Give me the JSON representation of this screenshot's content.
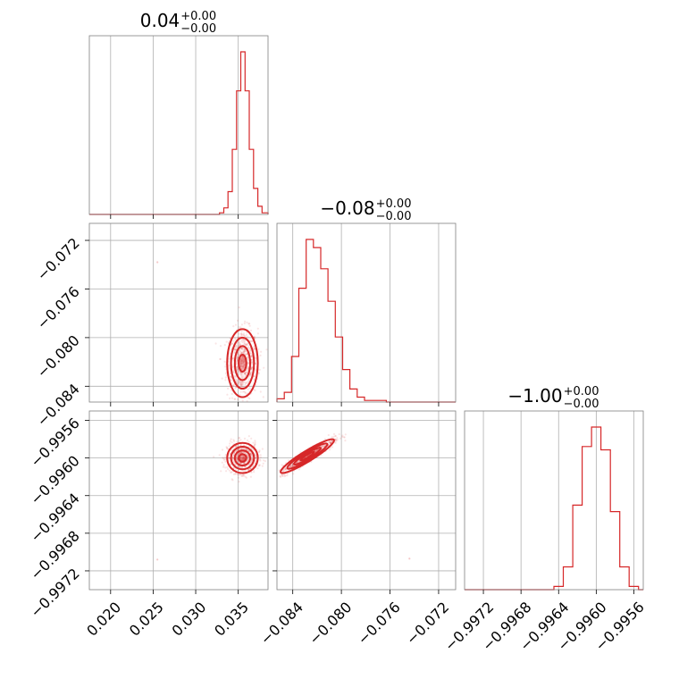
{
  "chart_data": {
    "type": "corner",
    "color": "#d62728",
    "grid": true,
    "parameters": [
      {
        "title": "0.04",
        "title_upper": "+0.00",
        "title_lower": "−0.00",
        "range": [
          0.0175,
          0.0385
        ],
        "ticks": [
          0.02,
          0.025,
          0.03,
          0.035
        ],
        "tick_labels": [
          "0.020",
          "0.025",
          "0.030",
          "0.035"
        ],
        "histogram": {
          "bin_edges": [
            0.0328,
            0.0333,
            0.0338,
            0.0343,
            0.0348,
            0.0353,
            0.0358,
            0.0363,
            0.0368,
            0.0373,
            0.0378,
            0.0385
          ],
          "counts": [
            1,
            4,
            14,
            40,
            76,
            100,
            76,
            40,
            16,
            5,
            1
          ]
        }
      },
      {
        "title": "−0.08",
        "title_upper": "+0.00",
        "title_lower": "−0.00",
        "range": [
          -0.0853,
          -0.0706
        ],
        "ticks": [
          -0.072,
          -0.076,
          -0.08,
          -0.084
        ],
        "tick_labels": [
          "−0.072",
          "−0.076",
          "−0.080",
          "−0.084"
        ],
        "histogram": {
          "bin_edges": [
            -0.0853,
            -0.0847,
            -0.0841,
            -0.0835,
            -0.0829,
            -0.0823,
            -0.0817,
            -0.0811,
            -0.0805,
            -0.0799,
            -0.0793,
            -0.0787,
            -0.0781,
            -0.0775,
            -0.0763,
            -0.0706
          ],
          "counts": [
            2,
            6,
            28,
            70,
            100,
            95,
            82,
            62,
            40,
            20,
            8,
            3,
            1,
            1,
            0
          ]
        }
      },
      {
        "title": "−1.00",
        "title_upper": "+0.00",
        "title_lower": "−0.00",
        "range": [
          -0.9974,
          -0.9955
        ],
        "ticks": [
          -0.9972,
          -0.9968,
          -0.9964,
          -0.996,
          -0.9956
        ],
        "tick_labels": [
          "−0.9972",
          "−0.9968",
          "−0.9964",
          "−0.9960",
          "−0.9956"
        ],
        "histogram": {
          "bin_edges": [
            -0.99645,
            -0.99635,
            -0.99625,
            -0.99615,
            -0.99605,
            -0.99595,
            -0.99585,
            -0.99575,
            -0.99565,
            -0.99555
          ],
          "counts": [
            2,
            14,
            52,
            88,
            100,
            86,
            48,
            14,
            2
          ]
        }
      }
    ],
    "pairs": [
      {
        "x_param": 0,
        "y_param": 1,
        "center": [
          0.0355,
          -0.0821
        ],
        "spread": [
          0.0009,
          0.0014
        ],
        "rho": 0.0,
        "contour_sigma": [
          0.5,
          1.0,
          1.5,
          2.0
        ],
        "outliers": [
          [
            0.0255,
            -0.0738
          ]
        ]
      },
      {
        "x_param": 0,
        "y_param": 2,
        "center": [
          0.0355,
          -0.996
        ],
        "spread": [
          0.0009,
          8e-05
        ],
        "rho": 0.0,
        "contour_sigma": [
          0.5,
          1.0,
          1.5,
          2.0
        ],
        "outliers": [
          [
            0.0255,
            -0.99708
          ]
        ]
      },
      {
        "x_param": 1,
        "y_param": 2,
        "center": [
          -0.0828,
          -0.99598
        ],
        "spread": [
          0.0011,
          9e-05
        ],
        "rho": 0.93,
        "contour_sigma": [
          0.5,
          1.0,
          1.5,
          2.0
        ],
        "outliers": [
          [
            -0.0744,
            -0.99707
          ]
        ]
      }
    ]
  }
}
